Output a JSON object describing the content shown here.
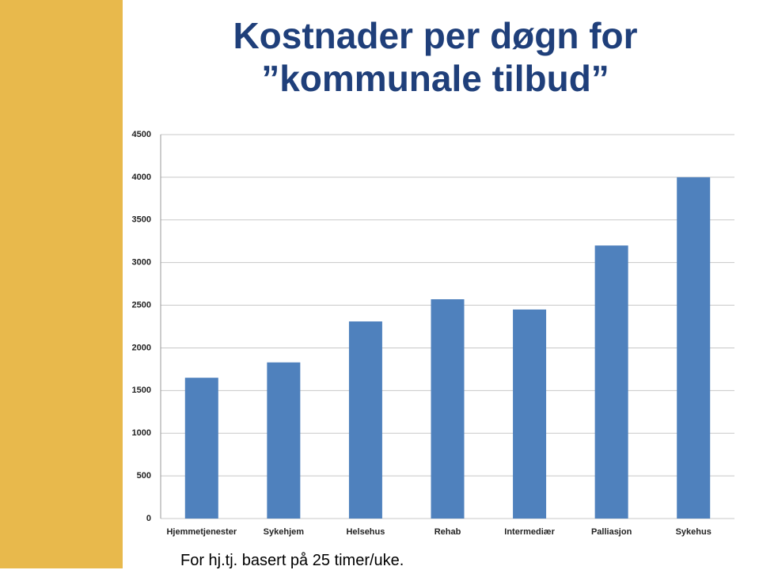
{
  "chart_data": {
    "type": "bar",
    "title": "Kostnader per døgn for ”kommunale tilbud”",
    "categories": [
      "Hjemmetjenester",
      "Sykehjem",
      "Helsehus",
      "Rehab",
      "Intermediær",
      "Palliasjon",
      "Sykehus"
    ],
    "values": [
      1650,
      1830,
      2310,
      2570,
      2450,
      3200,
      4000
    ],
    "color": "#4f81bd",
    "ylim": [
      0,
      4500
    ],
    "yticks": [
      0,
      500,
      1000,
      1500,
      2000,
      2500,
      3000,
      3500,
      4000,
      4500
    ],
    "grid": true,
    "footnote": "For hj.tj. basert på 25 timer/uke."
  }
}
